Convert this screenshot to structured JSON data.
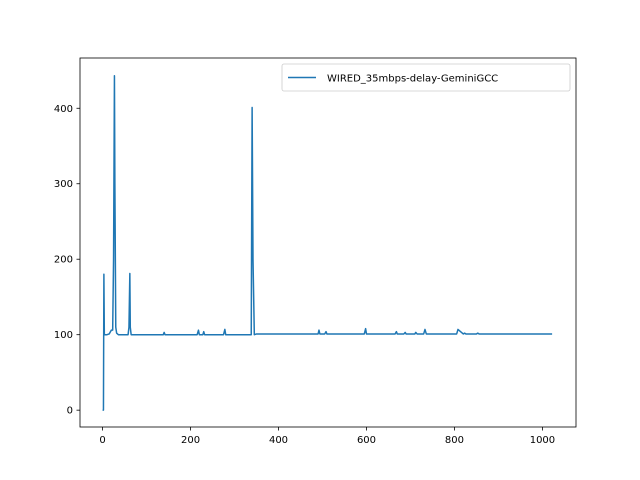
{
  "chart_data": {
    "type": "line",
    "title": "",
    "xlabel": "",
    "ylabel": "",
    "xlim": [
      -51.3,
      1076.3
    ],
    "ylim": [
      -22.3,
      466.6
    ],
    "x_ticks": [
      0,
      200,
      400,
      600,
      800,
      1000
    ],
    "y_ticks": [
      0,
      100,
      200,
      300,
      400
    ],
    "grid": false,
    "legend_position": "upper right",
    "colors": {
      "series": "#1f77b4"
    },
    "series": [
      {
        "name": "WIRED_35mbps-delay-GeminiGCC",
        "x": [
          0,
          2,
          3,
          4,
          5,
          6,
          10,
          15,
          20,
          23,
          25,
          27,
          28,
          30,
          32,
          36,
          40,
          50,
          58,
          60,
          62,
          63,
          65,
          70,
          80,
          100,
          130,
          138,
          140,
          142,
          160,
          200,
          215,
          218,
          220,
          228,
          230,
          232,
          260,
          275,
          278,
          280,
          300,
          330,
          338,
          340,
          342,
          345,
          350,
          400,
          450,
          480,
          490,
          492,
          494,
          505,
          508,
          510,
          540,
          590,
          595,
          598,
          600,
          640,
          665,
          668,
          670,
          685,
          688,
          690,
          710,
          712,
          715,
          730,
          733,
          736,
          780,
          800,
          805,
          808,
          820,
          823,
          826,
          850,
          853,
          856,
          900,
          950,
          1000,
          1022
        ],
        "y": [
          0,
          0,
          180,
          101,
          100,
          100,
          100,
          101,
          106,
          106,
          200,
          443,
          300,
          110,
          102,
          100,
          100,
          100,
          100,
          110,
          181,
          110,
          100,
          100,
          100,
          100,
          100,
          100,
          103,
          100,
          100,
          100,
          100,
          106,
          100,
          100,
          104,
          100,
          100,
          100,
          107,
          100,
          100,
          100,
          100,
          401,
          200,
          100,
          101,
          101,
          101,
          101,
          101,
          106,
          101,
          101,
          104,
          101,
          101,
          101,
          101,
          108,
          101,
          101,
          101,
          104,
          101,
          101,
          103,
          101,
          101,
          103,
          101,
          101,
          107,
          101,
          101,
          101,
          101,
          107,
          101,
          102,
          101,
          101,
          102,
          101,
          101,
          101,
          101,
          101
        ]
      }
    ]
  }
}
